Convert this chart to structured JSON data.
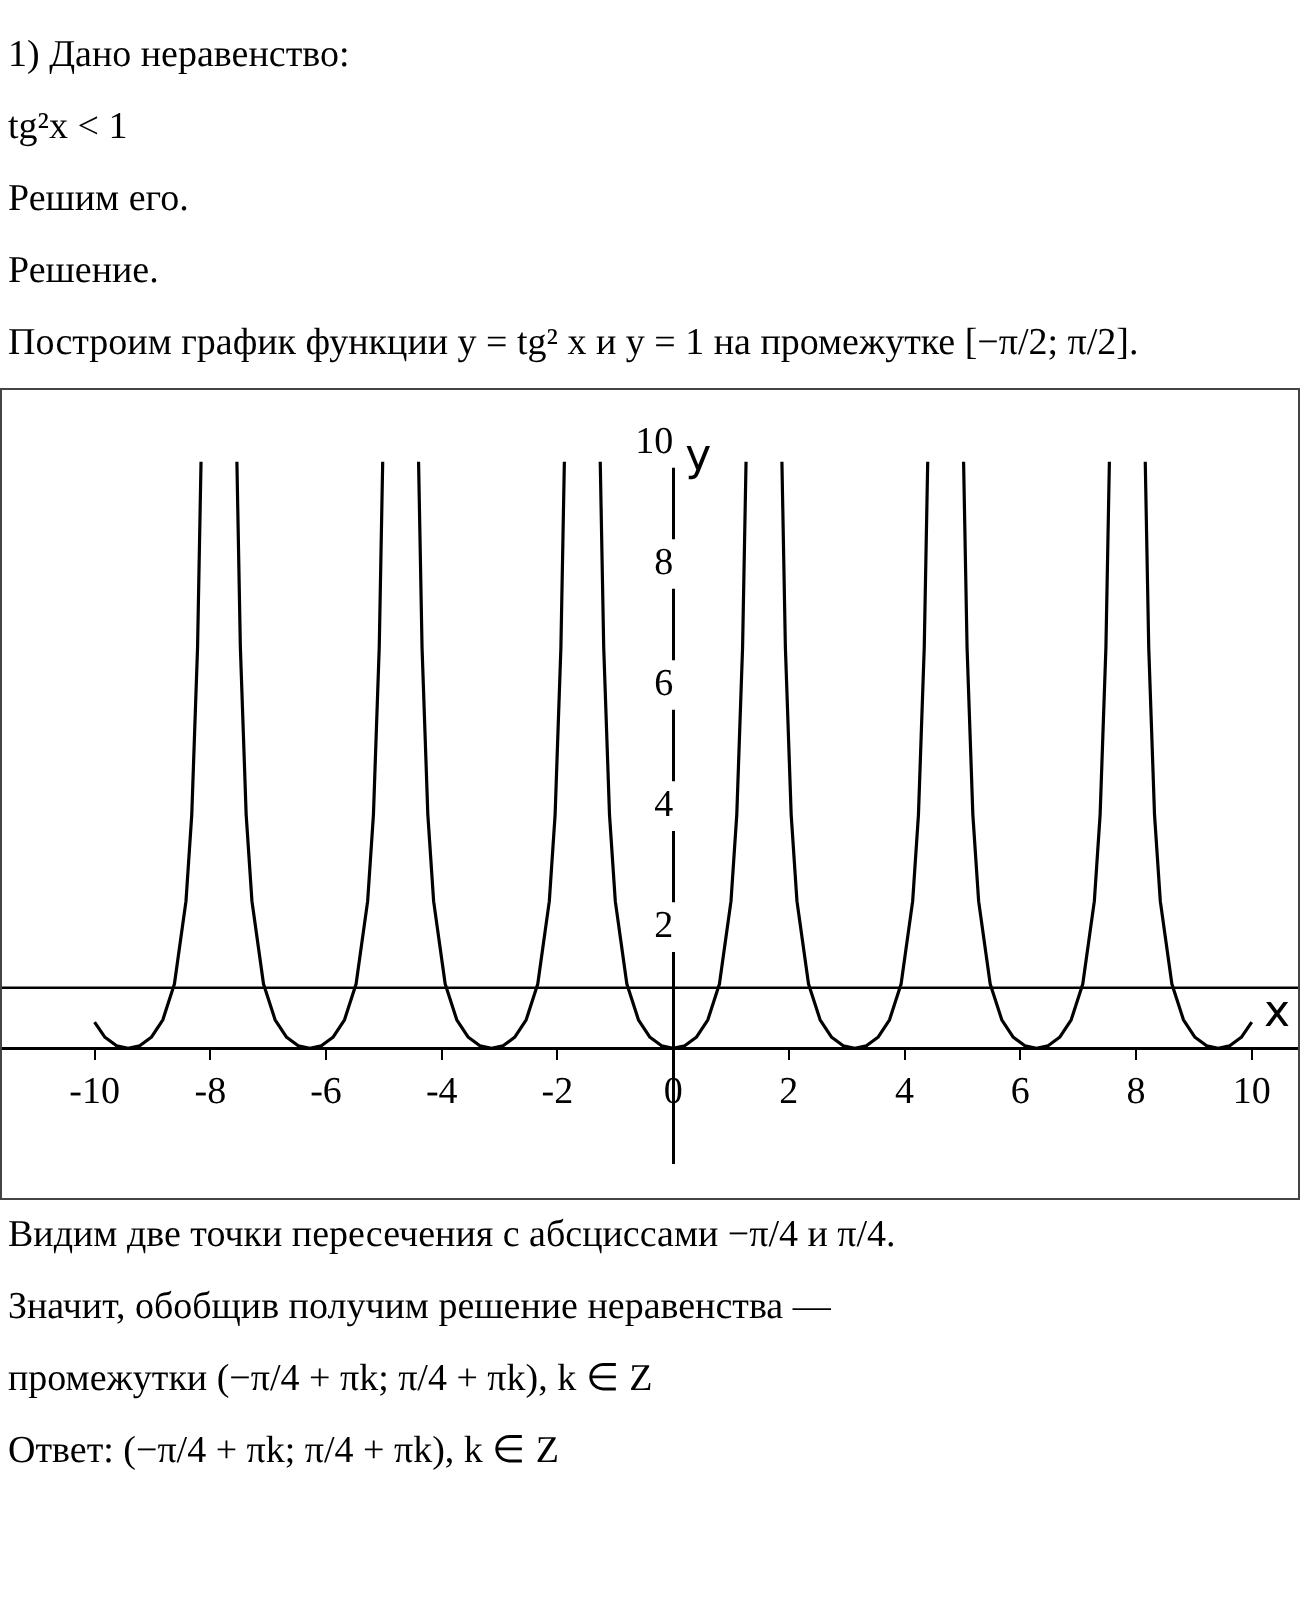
{
  "chart_data": {
    "type": "line",
    "title": "1) Дано неравенство:",
    "subtitle": "tg²x < 1",
    "xlabel": "x",
    "ylabel": "y",
    "x": [
      -10,
      -9.82,
      -9.62,
      -9.42,
      -9.22,
      -9.02,
      -8.82,
      -8.62,
      -8.42,
      -8.32,
      -8.22,
      -8.16,
      -7.85,
      -7.54,
      -7.48,
      -7.38,
      -7.28,
      -7.08,
      -6.88,
      -6.68,
      -6.48,
      -6.28,
      -6.08,
      -5.88,
      -5.68,
      -5.48,
      -5.28,
      -5.18,
      -5.08,
      -5.02,
      -4.71,
      -4.4,
      -4.34,
      -4.24,
      -4.14,
      -3.94,
      -3.74,
      -3.54,
      -3.34,
      -3.14,
      -2.94,
      -2.74,
      -2.54,
      -2.34,
      -2.14,
      -2.04,
      -1.94,
      -1.88,
      -1.57,
      -1.26,
      -1.2,
      -1.1,
      -1,
      -0.8,
      -0.6,
      -0.4,
      -0.2,
      0,
      0.2,
      0.4,
      0.6,
      0.8,
      1,
      1.1,
      1.2,
      1.26,
      1.57,
      1.88,
      1.94,
      2.04,
      2.14,
      2.34,
      2.54,
      2.74,
      2.94,
      3.14,
      3.34,
      3.54,
      3.74,
      3.94,
      4.14,
      4.24,
      4.34,
      4.4,
      4.71,
      5.02,
      5.08,
      5.18,
      5.28,
      5.48,
      5.68,
      5.88,
      6.08,
      6.28,
      6.48,
      6.68,
      6.88,
      7.08,
      7.28,
      7.38,
      7.48,
      7.54,
      7.85,
      8.16,
      8.22,
      8.32,
      8.42,
      8.62,
      8.82,
      9.02,
      9.22,
      9.42,
      9.62,
      9.82,
      10
    ],
    "series": [
      {
        "color": "#000000",
        "values": [
          0.43,
          0.18,
          0.04,
          0,
          0.04,
          0.18,
          0.47,
          1.06,
          2.43,
          3.86,
          6.62,
          9.69,
          null,
          9.69,
          6.62,
          3.86,
          2.43,
          1.06,
          0.47,
          0.18,
          0.04,
          0,
          0.04,
          0.18,
          0.47,
          1.06,
          2.43,
          3.86,
          6.62,
          9.69,
          null,
          9.69,
          6.62,
          3.86,
          2.43,
          1.06,
          0.47,
          0.18,
          0.04,
          0,
          0.04,
          0.18,
          0.47,
          1.06,
          2.43,
          3.86,
          6.62,
          9.69,
          null,
          9.69,
          6.62,
          3.86,
          2.43,
          1.06,
          0.47,
          0.18,
          0.04,
          0,
          0.04,
          0.18,
          0.47,
          1.06,
          2.43,
          3.86,
          6.62,
          9.69,
          null,
          9.69,
          6.62,
          3.86,
          2.43,
          1.06,
          0.47,
          0.18,
          0.04,
          0,
          0.04,
          0.18,
          0.47,
          1.06,
          2.43,
          3.86,
          6.62,
          9.69,
          null,
          9.69,
          6.62,
          3.86,
          2.43,
          1.06,
          0.47,
          0.18,
          0.04,
          0,
          0.04,
          0.18,
          0.47,
          1.06,
          2.43,
          3.86,
          6.62,
          9.69,
          null,
          9.69,
          6.62,
          3.86,
          2.43,
          1.06,
          0.47,
          0.18,
          0.04,
          0,
          0.04,
          0.18,
          0.43
        ]
      }
    ],
    "xlim": [
      -11.6,
      10.8
    ],
    "ylim": [
      -1.9,
      10.3
    ],
    "xticks": [
      -10,
      -8,
      -6,
      -4,
      -2,
      0,
      2,
      4,
      6,
      8,
      10
    ],
    "yticks": [
      2,
      4,
      6,
      8,
      10
    ],
    "ref_lines": [
      {
        "axis": "y",
        "value": 1,
        "color": "#000000"
      }
    ],
    "grid": false,
    "legend": false,
    "marker": "none",
    "line_style": "solid",
    "annotations": [
      "Решим его.",
      "Решение.",
      "Построим график функции y = tg² x и y = 1 на промежутке [−π/2; π/2].",
      "Видим две точки пересечения с абсциссами −π/4 и π/4.",
      "Значит, обобщив получим решение неравенства —",
      "промежутки (−π/4 + πk; π/4 + πk), k ∈ Z",
      "Ответ: (−π/4 + πk; π/4 + πk), k ∈ Z"
    ]
  }
}
